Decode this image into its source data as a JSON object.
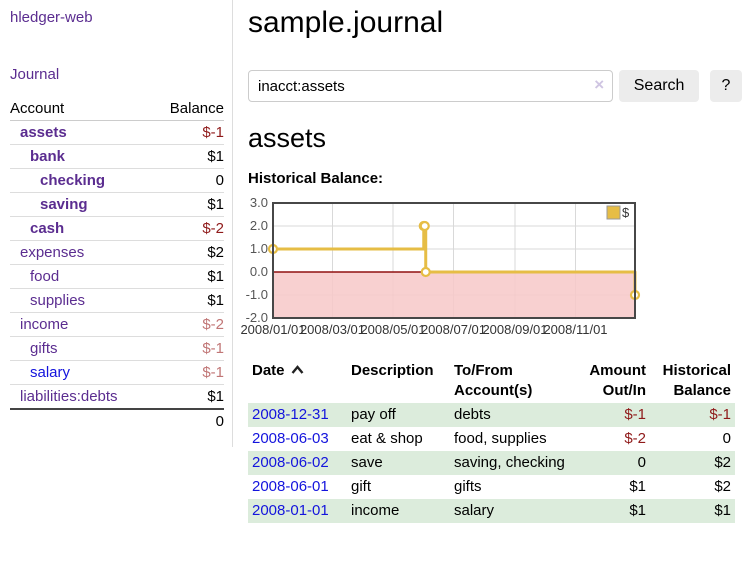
{
  "sidebar": {
    "brand": "hledger-web",
    "nav": {
      "journal": "Journal"
    },
    "accounts_table": {
      "headers": {
        "account": "Account",
        "balance": "Balance"
      },
      "rows": [
        {
          "account": "assets",
          "balance": "$-1"
        },
        {
          "account": "bank",
          "balance": "$1"
        },
        {
          "account": "checking",
          "balance": "0"
        },
        {
          "account": "saving",
          "balance": "$1"
        },
        {
          "account": "cash",
          "balance": "$-2"
        },
        {
          "account": "expenses",
          "balance": "$2"
        },
        {
          "account": "food",
          "balance": "$1"
        },
        {
          "account": "supplies",
          "balance": "$1"
        },
        {
          "account": "income",
          "balance": "$-2"
        },
        {
          "account": "gifts",
          "balance": "$-1"
        },
        {
          "account": "salary",
          "balance": "$-1"
        },
        {
          "account": "liabilities:debts",
          "balance": "$1"
        }
      ],
      "total": "0"
    }
  },
  "header": {
    "title": "sample.journal"
  },
  "search": {
    "value": "inacct:assets",
    "clear_icon": "×",
    "button_label": "Search",
    "help_label": "?"
  },
  "account_page": {
    "heading": "assets",
    "chart_label": "Historical Balance:"
  },
  "chart_data": {
    "type": "line",
    "title": "Historical Balance:",
    "series": [
      {
        "name": "$",
        "color": "#e6bd45",
        "step": true,
        "points": [
          [
            "2008-01-01",
            1
          ],
          [
            "2008-06-01",
            2
          ],
          [
            "2008-06-02",
            2
          ],
          [
            "2008-06-03",
            0
          ],
          [
            "2008-12-31",
            -1
          ]
        ]
      }
    ],
    "ylim": [
      -2,
      3
    ],
    "yticks": [
      3,
      2,
      1,
      0,
      -1,
      -2
    ],
    "xlim": [
      "2008-01-01",
      "2008-12-31"
    ],
    "xticks": [
      "2008/01/01",
      "2008/03/01",
      "2008/05/01",
      "2008/07/01",
      "2008/09/01",
      "2008/11/01"
    ],
    "legend_position": "top-right",
    "grid": true,
    "colors": {
      "grid": "#d9d9d9",
      "border": "#474747",
      "zero_line": "#8f1010",
      "negative_region": "rgba(247,200,200,0.85)"
    }
  },
  "register": {
    "headers": {
      "date": "Date",
      "description": "Description",
      "accounts": "To/From Account(s)",
      "amount": "Amount Out/In",
      "balance": "Historical Balance"
    },
    "rows": [
      {
        "date": "2008-12-31",
        "description": "pay off",
        "accounts": "debts",
        "amount": "$-1",
        "balance": "$-1"
      },
      {
        "date": "2008-06-03",
        "description": "eat & shop",
        "accounts": "food, supplies",
        "amount": "$-2",
        "balance": "0"
      },
      {
        "date": "2008-06-02",
        "description": "save",
        "accounts": "saving, checking",
        "amount": "0",
        "balance": "$2"
      },
      {
        "date": "2008-06-01",
        "description": "gift",
        "accounts": "gifts",
        "amount": "$1",
        "balance": "$2"
      },
      {
        "date": "2008-01-01",
        "description": "income",
        "accounts": "salary",
        "amount": "$1",
        "balance": "$1"
      }
    ]
  },
  "colors": {
    "link_visited_purple": "#5b2d90",
    "link_unvisited_blue": "#1414dd",
    "negative_strong": "#8f1a1a",
    "negative_dim": "#c17676",
    "row_stripe_green": "#dcecdc",
    "chart_line": "#e6bd45"
  }
}
